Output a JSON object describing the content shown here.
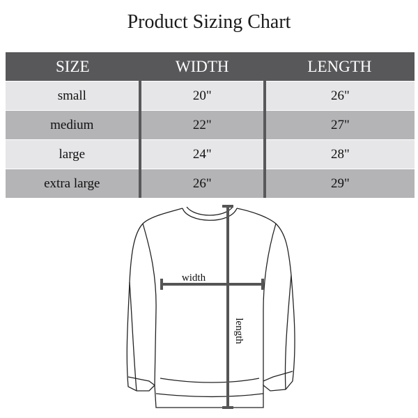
{
  "title": "Product Sizing Chart",
  "table": {
    "headers": [
      "SIZE",
      "WIDTH",
      "LENGTH"
    ],
    "rows": [
      {
        "size": "small",
        "width": "20\"",
        "length": "26\""
      },
      {
        "size": "medium",
        "width": "22\"",
        "length": "27\""
      },
      {
        "size": "large",
        "width": "24\"",
        "length": "28\""
      },
      {
        "size": "extra large",
        "width": "26\"",
        "length": "29\""
      }
    ]
  },
  "diagram": {
    "width_label": "width",
    "length_label": "length"
  },
  "colors": {
    "header": "#58585a",
    "row_light": "#e6e6e8",
    "row_dark": "#b4b4b6"
  }
}
